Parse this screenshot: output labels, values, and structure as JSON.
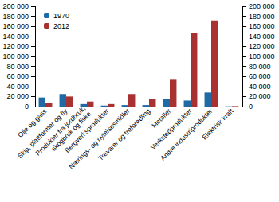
{
  "chart_data": {
    "type": "bar",
    "categories": [
      "Olje og gass",
      "Skip, plattformer og fly",
      "Produkter fra jordbruk,\nskogbruk og fiske",
      "Bergverksprodukter",
      "Nærings- og nytelsesmidler",
      "Trevarer og treforedling",
      "Metaller",
      "Verkstedprodukter",
      "Andre industriprodukter",
      "Elektrisk kraft"
    ],
    "series": [
      {
        "name": "1970",
        "color": "#1f6aa5",
        "values": [
          18000,
          25000,
          5000,
          2000,
          3000,
          3000,
          15000,
          12000,
          28000,
          500
        ]
      },
      {
        "name": "2012",
        "color": "#a83232",
        "values": [
          8000,
          20000,
          10000,
          5000,
          25000,
          15000,
          55000,
          147000,
          172000,
          1000
        ]
      }
    ],
    "ylim": [
      0,
      200000
    ],
    "yticks": [
      0,
      {
        "value": 20000,
        "label": "20 000"
      },
      {
        "value": 40000,
        "label": "40 000"
      },
      {
        "value": 60000,
        "label": "60 000"
      },
      {
        "value": 80000,
        "label": "80 000"
      },
      {
        "value": 100000,
        "label": "100 000"
      },
      {
        "value": 120000,
        "label": "120 000"
      },
      {
        "value": 140000,
        "label": "140 000"
      },
      {
        "value": 160000,
        "label": "160 000"
      },
      {
        "value": 180000,
        "label": "180 000"
      },
      {
        "value": 200000,
        "label": "200 000"
      }
    ],
    "y2lim": [
      0,
      200000
    ],
    "y2ticks": [
      0,
      {
        "value": 20000,
        "label": "20 000"
      },
      {
        "value": 40000,
        "label": "40 000"
      },
      {
        "value": 60000,
        "label": "60 000"
      },
      {
        "value": 80000,
        "label": "80 000"
      },
      {
        "value": 100000,
        "label": "100 000"
      },
      {
        "value": 120000,
        "label": "120 000"
      },
      {
        "value": 140000,
        "label": "140 000"
      },
      {
        "value": 160000,
        "label": "160 000"
      },
      {
        "value": 180000,
        "label": "180 000"
      },
      {
        "value": 200000,
        "label": "200 000"
      }
    ],
    "legend": "upper left",
    "grid": false
  }
}
